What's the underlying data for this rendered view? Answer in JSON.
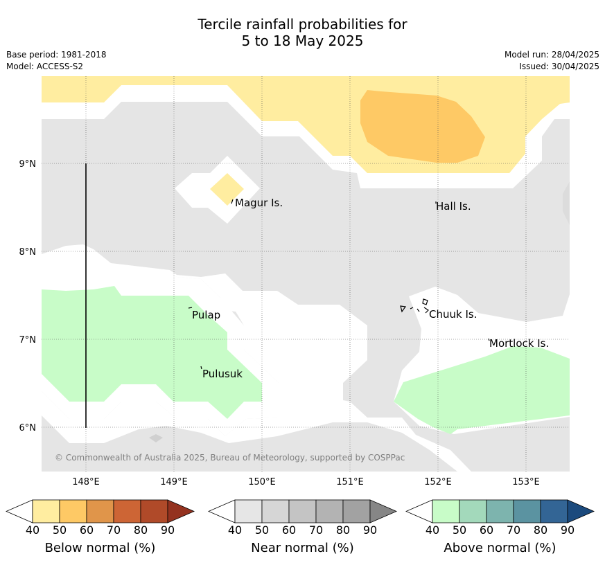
{
  "title": {
    "line1": "Tercile rainfall probabilities for",
    "line2": "5 to 18 May 2025"
  },
  "meta_left": {
    "base_period": "Base period: 1981-2018",
    "model": "Model: ACCESS-S2"
  },
  "meta_right": {
    "model_run": "Model run: 28/04/2025",
    "issued": "Issued: 30/04/2025"
  },
  "map": {
    "lon_ticks": [
      "148°E",
      "149°E",
      "150°E",
      "151°E",
      "152°E",
      "153°E"
    ],
    "lat_ticks": [
      "9°N",
      "8°N",
      "7°N",
      "6°N"
    ],
    "places": [
      {
        "name": "Magur Is."
      },
      {
        "name": "Hall Is."
      },
      {
        "name": "Pulap"
      },
      {
        "name": "Chuuk Is."
      },
      {
        "name": "Mortlock Is."
      },
      {
        "name": "Pulusuk"
      }
    ],
    "copyright": "© Commonwealth of Australia 2025, Bureau of Meteorology, supported by COSPPac",
    "colors": {
      "below_40": "#ffeda0",
      "below_50": "#fec965",
      "near_40": "#e5e5e5",
      "near_50": "#dcdcdc",
      "above_40": "#c8fcc8"
    }
  },
  "colorbars": [
    {
      "label": "Below normal (%)",
      "ticks": [
        "40",
        "50",
        "60",
        "70",
        "80",
        "90"
      ],
      "colors": [
        "#ffeda0",
        "#fec965",
        "#e0954a",
        "#cd6535",
        "#b04a29",
        "#94321f"
      ]
    },
    {
      "label": "Near normal (%)",
      "ticks": [
        "40",
        "50",
        "60",
        "70",
        "80",
        "90"
      ],
      "colors": [
        "#e6e6e6",
        "#d6d6d6",
        "#c4c4c4",
        "#b3b3b3",
        "#a2a2a2",
        "#868686"
      ]
    },
    {
      "label": "Above normal (%)",
      "ticks": [
        "40",
        "50",
        "60",
        "70",
        "80",
        "90"
      ],
      "colors": [
        "#c8fcc8",
        "#a3d9bb",
        "#7db4ae",
        "#5b93a1",
        "#336595",
        "#1b4a7d"
      ]
    }
  ]
}
